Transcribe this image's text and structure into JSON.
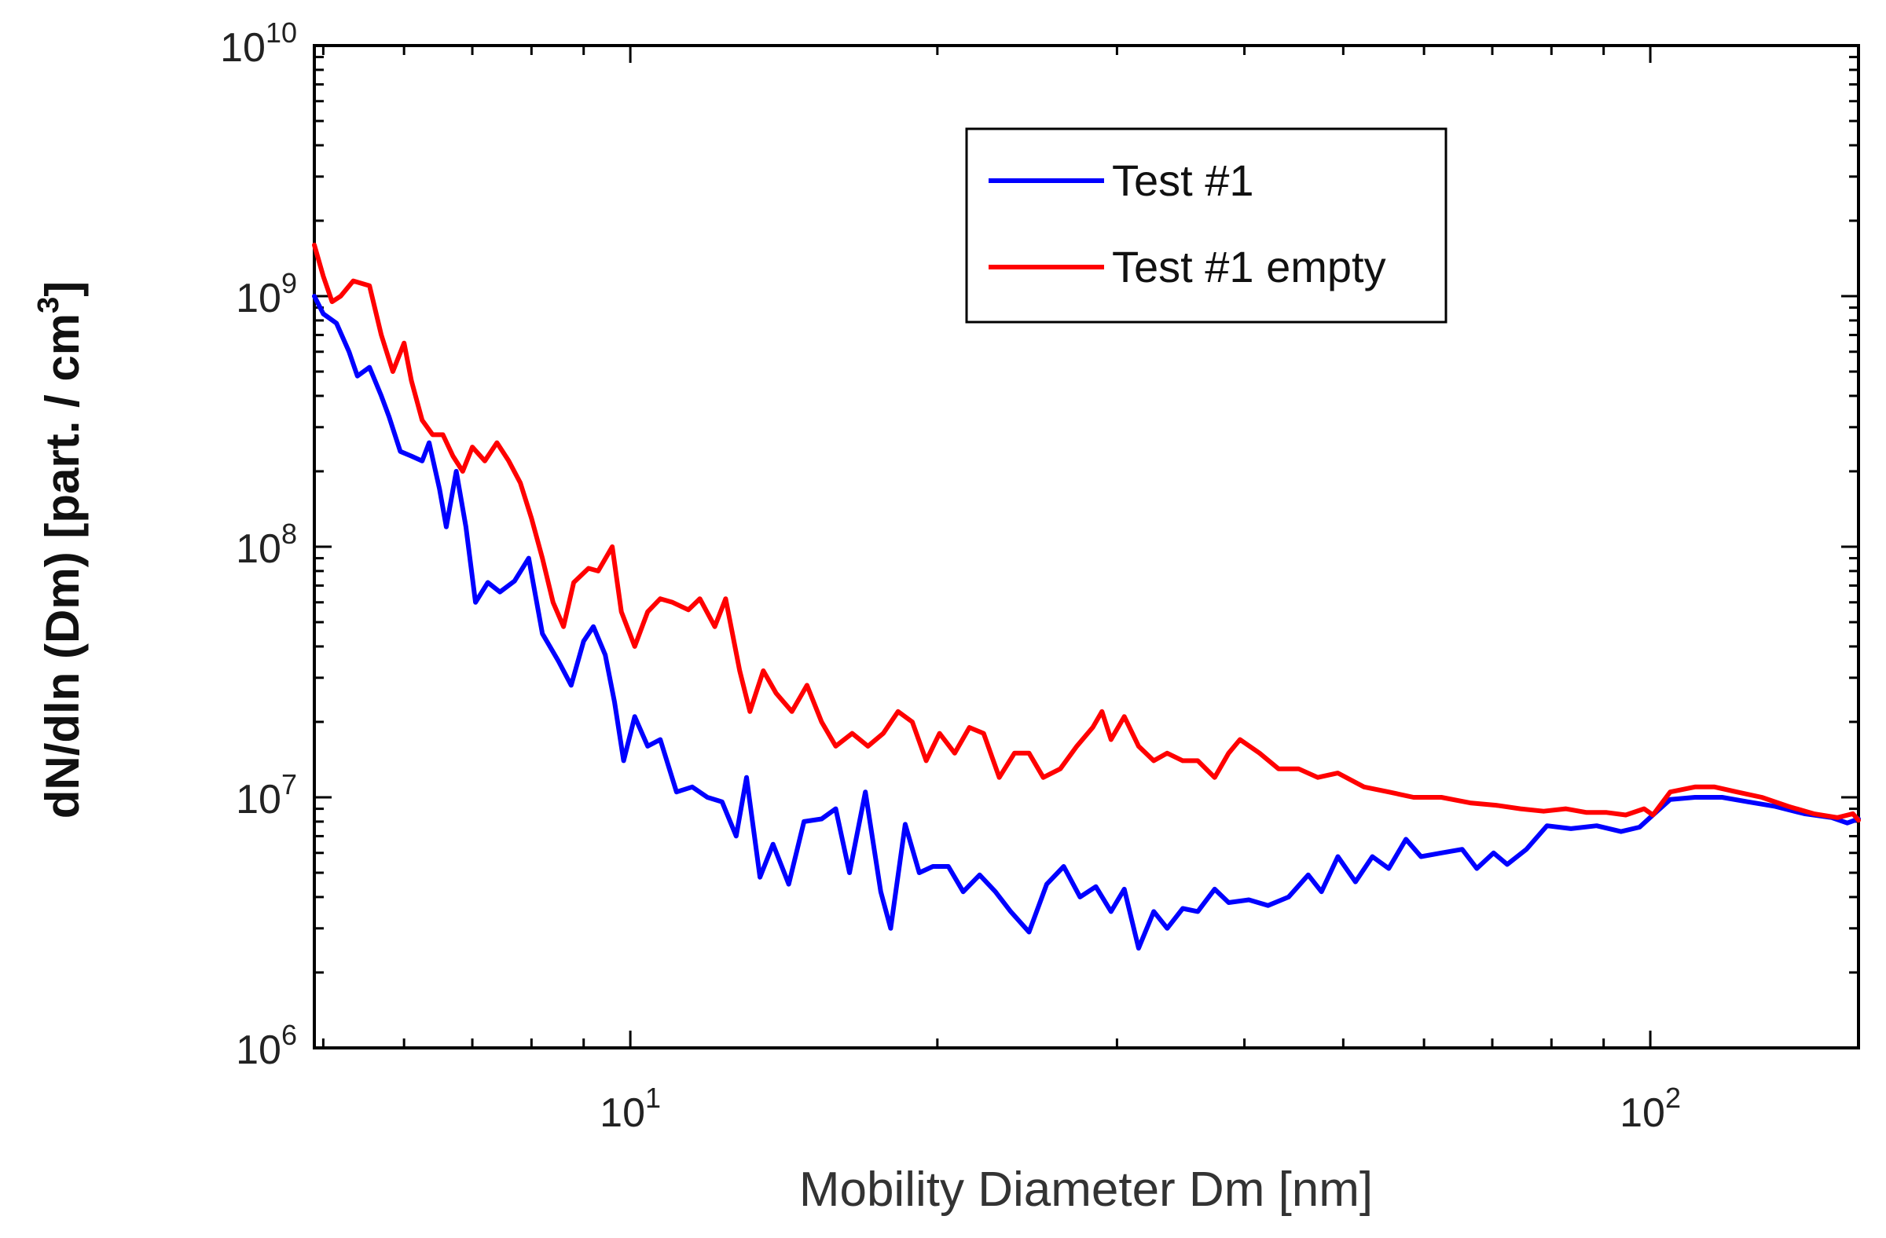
{
  "chart_data": {
    "type": "line",
    "title": "",
    "xscale": "log",
    "yscale": "log",
    "xlim": [
      4.9,
      160
    ],
    "ylim": [
      1000000,
      10000000000
    ],
    "xlabel": "Mobility Diameter Dm [nm]",
    "ylabel": "dN/dln (Dm) [part. / cm",
    "ylabel_sup": "3",
    "ylabel_close": "]",
    "x_ticks": [
      {
        "value": 10,
        "base": "10",
        "exp": "1"
      },
      {
        "value": 100,
        "base": "10",
        "exp": "2"
      }
    ],
    "y_ticks": [
      {
        "value": 1000000,
        "base": "10",
        "exp": "6"
      },
      {
        "value": 10000000,
        "base": "10",
        "exp": "7"
      },
      {
        "value": 100000000,
        "base": "10",
        "exp": "8"
      },
      {
        "value": 1000000000,
        "base": "10",
        "exp": "9"
      },
      {
        "value": 10000000000,
        "base": "10",
        "exp": "10"
      }
    ],
    "legend_position": "top-center",
    "series": [
      {
        "name": "Test #1",
        "color": "#0000ff",
        "points": [
          [
            4.9,
            1000000000.0
          ],
          [
            5.0,
            850000000.0
          ],
          [
            5.15,
            780000000.0
          ],
          [
            5.3,
            600000000.0
          ],
          [
            5.4,
            480000000.0
          ],
          [
            5.55,
            520000000.0
          ],
          [
            5.7,
            400000000.0
          ],
          [
            5.8,
            330000000.0
          ],
          [
            5.95,
            240000000.0
          ],
          [
            6.1,
            230000000.0
          ],
          [
            6.25,
            220000000.0
          ],
          [
            6.35,
            260000000.0
          ],
          [
            6.5,
            170000000.0
          ],
          [
            6.6,
            120000000.0
          ],
          [
            6.75,
            200000000.0
          ],
          [
            6.9,
            120000000.0
          ],
          [
            7.05,
            60000000.0
          ],
          [
            7.25,
            72000000.0
          ],
          [
            7.45,
            66000000.0
          ],
          [
            7.7,
            73000000.0
          ],
          [
            7.95,
            90000000.0
          ],
          [
            8.2,
            45000000.0
          ],
          [
            8.5,
            35000000.0
          ],
          [
            8.75,
            28000000.0
          ],
          [
            9.0,
            42000000.0
          ],
          [
            9.2,
            48000000.0
          ],
          [
            9.45,
            37000000.0
          ],
          [
            9.65,
            24000000.0
          ],
          [
            9.85,
            14000000.0
          ],
          [
            10.1,
            21000000.0
          ],
          [
            10.4,
            16000000.0
          ],
          [
            10.7,
            17000000.0
          ],
          [
            11.1,
            10500000.0
          ],
          [
            11.5,
            11000000.0
          ],
          [
            11.9,
            10000000.0
          ],
          [
            12.3,
            9600000.0
          ],
          [
            12.7,
            7000000.0
          ],
          [
            13.0,
            12000000.0
          ],
          [
            13.4,
            4800000.0
          ],
          [
            13.8,
            6500000.0
          ],
          [
            14.3,
            4500000.0
          ],
          [
            14.8,
            8000000.0
          ],
          [
            15.4,
            8200000.0
          ],
          [
            15.9,
            9000000.0
          ],
          [
            16.4,
            5000000.0
          ],
          [
            17.0,
            10500000.0
          ],
          [
            17.6,
            4200000.0
          ],
          [
            18.0,
            3000000.0
          ],
          [
            18.6,
            7800000.0
          ],
          [
            19.2,
            5000000.0
          ],
          [
            19.8,
            5300000.0
          ],
          [
            20.5,
            5300000.0
          ],
          [
            21.2,
            4200000.0
          ],
          [
            22.0,
            4900000.0
          ],
          [
            22.8,
            4200000.0
          ],
          [
            23.6,
            3500000.0
          ],
          [
            24.6,
            2900000.0
          ],
          [
            25.6,
            4500000.0
          ],
          [
            26.6,
            5300000.0
          ],
          [
            27.6,
            4000000.0
          ],
          [
            28.6,
            4400000.0
          ],
          [
            29.6,
            3500000.0
          ],
          [
            30.5,
            4300000.0
          ],
          [
            31.5,
            2500000.0
          ],
          [
            32.6,
            3500000.0
          ],
          [
            33.6,
            3000000.0
          ],
          [
            34.8,
            3600000.0
          ],
          [
            36.0,
            3500000.0
          ],
          [
            37.4,
            4300000.0
          ],
          [
            38.6,
            3800000.0
          ],
          [
            40.4,
            3900000.0
          ],
          [
            42.2,
            3700000.0
          ],
          [
            44.2,
            4000000.0
          ],
          [
            46.2,
            4900000.0
          ],
          [
            47.6,
            4200000.0
          ],
          [
            49.4,
            5800000.0
          ],
          [
            51.4,
            4600000.0
          ],
          [
            53.4,
            5800000.0
          ],
          [
            55.4,
            5200000.0
          ],
          [
            57.6,
            6800000.0
          ],
          [
            59.6,
            5800000.0
          ],
          [
            62.4,
            6000000.0
          ],
          [
            65.4,
            6200000.0
          ],
          [
            67.6,
            5200000.0
          ],
          [
            70.2,
            6000000.0
          ],
          [
            72.4,
            5400000.0
          ],
          [
            75.6,
            6200000.0
          ],
          [
            79.2,
            7700000.0
          ],
          [
            83.6,
            7500000.0
          ],
          [
            88.6,
            7700000.0
          ],
          [
            93.6,
            7300000.0
          ],
          [
            97.6,
            7600000.0
          ],
          [
            100.6,
            8500000.0
          ],
          [
            104.6,
            9800000.0
          ],
          [
            110.6,
            10000000.0
          ],
          [
            117.6,
            10000000.0
          ],
          [
            124.6,
            9600000.0
          ],
          [
            132.6,
            9200000.0
          ],
          [
            141.6,
            8600000.0
          ],
          [
            150.6,
            8300000.0
          ],
          [
            156.0,
            7900000.0
          ],
          [
            160.0,
            8200000.0
          ]
        ]
      },
      {
        "name": "Test #1 empty",
        "color": "#ff0000",
        "points": [
          [
            4.9,
            1600000000.0
          ],
          [
            5.0,
            1200000000.0
          ],
          [
            5.1,
            950000000.0
          ],
          [
            5.2,
            1000000000.0
          ],
          [
            5.35,
            1150000000.0
          ],
          [
            5.55,
            1100000000.0
          ],
          [
            5.7,
            700000000.0
          ],
          [
            5.85,
            500000000.0
          ],
          [
            6.0,
            650000000.0
          ],
          [
            6.1,
            460000000.0
          ],
          [
            6.25,
            320000000.0
          ],
          [
            6.4,
            280000000.0
          ],
          [
            6.55,
            280000000.0
          ],
          [
            6.7,
            230000000.0
          ],
          [
            6.85,
            200000000.0
          ],
          [
            7.0,
            250000000.0
          ],
          [
            7.2,
            220000000.0
          ],
          [
            7.4,
            260000000.0
          ],
          [
            7.6,
            220000000.0
          ],
          [
            7.8,
            180000000.0
          ],
          [
            8.0,
            130000000.0
          ],
          [
            8.2,
            90000000.0
          ],
          [
            8.4,
            60000000.0
          ],
          [
            8.6,
            48000000.0
          ],
          [
            8.8,
            72000000.0
          ],
          [
            9.1,
            82000000.0
          ],
          [
            9.3,
            80000000.0
          ],
          [
            9.6,
            100000000.0
          ],
          [
            9.8,
            55000000.0
          ],
          [
            10.1,
            40000000.0
          ],
          [
            10.4,
            55000000.0
          ],
          [
            10.7,
            62000000.0
          ],
          [
            11.0,
            60000000.0
          ],
          [
            11.4,
            56000000.0
          ],
          [
            11.7,
            62000000.0
          ],
          [
            12.1,
            48000000.0
          ],
          [
            12.4,
            62000000.0
          ],
          [
            12.8,
            32000000.0
          ],
          [
            13.1,
            22000000.0
          ],
          [
            13.5,
            32000000.0
          ],
          [
            13.9,
            26000000.0
          ],
          [
            14.4,
            22000000.0
          ],
          [
            14.9,
            28000000.0
          ],
          [
            15.4,
            20000000.0
          ],
          [
            15.9,
            16000000.0
          ],
          [
            16.5,
            18000000.0
          ],
          [
            17.1,
            16000000.0
          ],
          [
            17.7,
            18000000.0
          ],
          [
            18.3,
            22000000.0
          ],
          [
            18.9,
            20000000.0
          ],
          [
            19.5,
            14000000.0
          ],
          [
            20.1,
            18000000.0
          ],
          [
            20.8,
            15000000.0
          ],
          [
            21.5,
            19000000.0
          ],
          [
            22.2,
            18000000.0
          ],
          [
            23.0,
            12000000.0
          ],
          [
            23.8,
            15000000.0
          ],
          [
            24.6,
            15000000.0
          ],
          [
            25.4,
            12000000.0
          ],
          [
            26.4,
            13000000.0
          ],
          [
            27.4,
            16000000.0
          ],
          [
            28.4,
            19000000.0
          ],
          [
            29.0,
            22000000.0
          ],
          [
            29.6,
            17000000.0
          ],
          [
            30.5,
            21000000.0
          ],
          [
            31.5,
            16000000.0
          ],
          [
            32.6,
            14000000.0
          ],
          [
            33.6,
            15000000.0
          ],
          [
            34.8,
            14000000.0
          ],
          [
            36.0,
            14000000.0
          ],
          [
            37.4,
            12000000.0
          ],
          [
            38.6,
            15000000.0
          ],
          [
            39.6,
            17000000.0
          ],
          [
            41.4,
            15000000.0
          ],
          [
            43.2,
            13000000.0
          ],
          [
            45.2,
            13000000.0
          ],
          [
            47.2,
            12000000.0
          ],
          [
            49.4,
            12500000.0
          ],
          [
            52.4,
            11000000.0
          ],
          [
            55.4,
            10500000.0
          ],
          [
            58.6,
            10000000.0
          ],
          [
            62.4,
            10000000.0
          ],
          [
            66.6,
            9500000.0
          ],
          [
            70.6,
            9300000.0
          ],
          [
            74.6,
            9000000.0
          ],
          [
            78.6,
            8800000.0
          ],
          [
            82.6,
            9000000.0
          ],
          [
            86.6,
            8700000.0
          ],
          [
            90.6,
            8700000.0
          ],
          [
            94.6,
            8500000.0
          ],
          [
            98.6,
            9000000.0
          ],
          [
            100.6,
            8500000.0
          ],
          [
            104.6,
            10500000.0
          ],
          [
            110.6,
            11000000.0
          ],
          [
            115.6,
            11000000.0
          ],
          [
            121.6,
            10500000.0
          ],
          [
            128.6,
            10000000.0
          ],
          [
            136.6,
            9200000.0
          ],
          [
            144.6,
            8600000.0
          ],
          [
            152.6,
            8300000.0
          ],
          [
            158.0,
            8600000.0
          ],
          [
            160.0,
            8100000.0
          ]
        ]
      }
    ]
  }
}
